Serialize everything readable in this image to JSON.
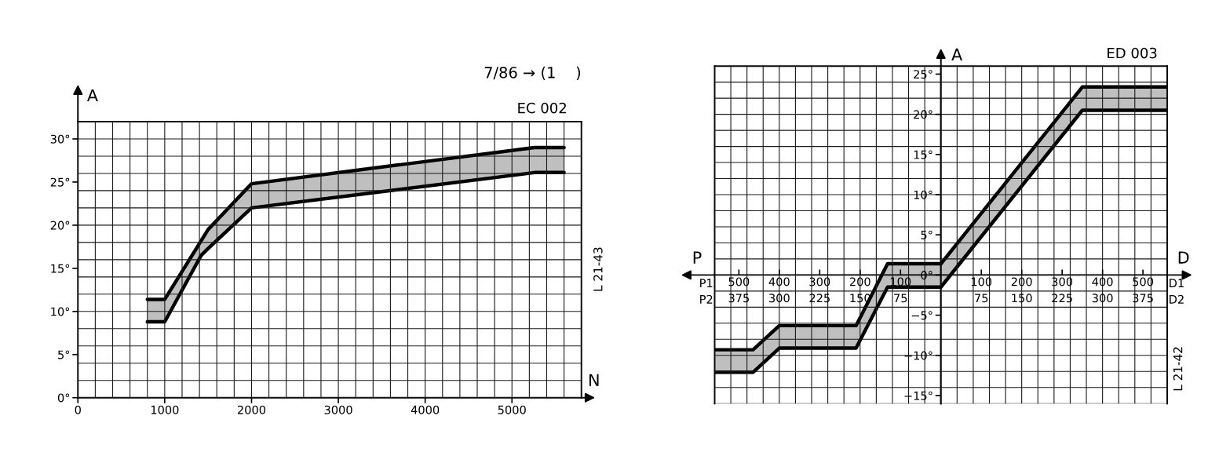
{
  "chart_data": [
    {
      "type": "line",
      "title": "7/86 → (1    )",
      "xlabel": "N",
      "ylabel": "A",
      "annotations": [
        "EC 002",
        "L 21-43"
      ],
      "xlim": [
        0,
        5800
      ],
      "ylim": [
        0,
        32
      ],
      "xticks": [
        0,
        {
          "value": 200,
          "label": null
        },
        {
          "value": 400,
          "label": null
        },
        {
          "value": 600,
          "label": null
        },
        {
          "value": 800,
          "label": null
        },
        1000,
        {
          "value": 1200,
          "label": null
        },
        {
          "value": 1400,
          "label": null
        },
        {
          "value": 1600,
          "label": null
        },
        {
          "value": 1800,
          "label": null
        },
        2000,
        {
          "value": 2200,
          "label": null
        },
        {
          "value": 2400,
          "label": null
        },
        {
          "value": 2600,
          "label": null
        },
        {
          "value": 2800,
          "label": null
        },
        3000,
        {
          "value": 3200,
          "label": null
        },
        {
          "value": 3400,
          "label": null
        },
        {
          "value": 3600,
          "label": null
        },
        {
          "value": 3800,
          "label": null
        },
        4000,
        {
          "value": 4200,
          "label": null
        },
        {
          "value": 4400,
          "label": null
        },
        {
          "value": 4600,
          "label": null
        },
        {
          "value": 4800,
          "label": null
        },
        5000,
        {
          "value": 5200,
          "label": null
        },
        {
          "value": 5400,
          "label": null
        },
        {
          "value": 5600,
          "label": null
        },
        {
          "value": 5800,
          "label": null
        }
      ],
      "yticks": [
        {
          "value": 0,
          "label": "0°"
        },
        {
          "value": 2,
          "label": null
        },
        {
          "value": 4,
          "label": null
        },
        {
          "value": 5,
          "label": "5°"
        },
        {
          "value": 6,
          "label": null
        },
        {
          "value": 8,
          "label": null
        },
        {
          "value": 10,
          "label": "10°"
        },
        {
          "value": 12,
          "label": null
        },
        {
          "value": 14,
          "label": null
        },
        {
          "value": 15,
          "label": "15°"
        },
        {
          "value": 16,
          "label": null
        },
        {
          "value": 18,
          "label": null
        },
        {
          "value": 20,
          "label": "20°"
        },
        {
          "value": 22,
          "label": null
        },
        {
          "value": 24,
          "label": null
        },
        {
          "value": 25,
          "label": "25°"
        },
        {
          "value": 26,
          "label": null
        },
        {
          "value": 28,
          "label": null
        },
        {
          "value": 30,
          "label": "30°"
        },
        {
          "value": 32,
          "label": null
        }
      ],
      "grid": true,
      "x": [
        800,
        1000,
        1420,
        1500,
        2000,
        5260,
        5600
      ],
      "series": [
        {
          "color": "#000000",
          "values": [
            11.4,
            11.4,
            18.2,
            19.5,
            24.8,
            29.0,
            29.0
          ],
          "lower": [
            8.8,
            8.8,
            16.5,
            17.3,
            22.0,
            26.1,
            26.1
          ],
          "upper": [
            11.4,
            11.4,
            18.2,
            19.5,
            24.8,
            29.0,
            29.0
          ]
        },
        {
          "color": "#000000",
          "values": [
            8.8,
            8.8,
            16.5,
            17.3,
            22.0,
            26.1,
            26.1
          ]
        }
      ]
    },
    {
      "type": "line",
      "xlabel": "P1",
      "x2label": "P2",
      "annotations": [
        "P"
      ],
      "tick_labels": "x",
      "xlim": [
        560,
        0
      ],
      "x2lim": [
        420,
        0
      ],
      "ylim": [
        -16,
        26
      ],
      "xticks": [
        {
          "value": 560,
          "label": null
        },
        {
          "value": 520,
          "label": null
        },
        500,
        {
          "value": 480,
          "label": null
        },
        {
          "value": 440,
          "label": null
        },
        400,
        {
          "value": 360,
          "label": null
        },
        {
          "value": 320,
          "label": null
        },
        300,
        {
          "value": 280,
          "label": null
        },
        {
          "value": 240,
          "label": null
        },
        200,
        {
          "value": 160,
          "label": null
        },
        {
          "value": 120,
          "label": null
        },
        100,
        {
          "value": 80,
          "label": null
        },
        {
          "value": 40,
          "label": null
        },
        {
          "value": 0,
          "label": null
        }
      ],
      "x2ticks": [
        375,
        300,
        225,
        150,
        75
      ],
      "yticks": [
        {
          "value": -16,
          "label": null
        },
        {
          "value": -14,
          "label": null
        },
        {
          "value": -12,
          "label": null
        },
        {
          "value": -10,
          "label": null
        },
        {
          "value": -8,
          "label": null
        },
        {
          "value": -6,
          "label": null
        },
        {
          "value": -4,
          "label": null
        },
        {
          "value": -2,
          "label": null
        },
        {
          "value": 0,
          "label": null
        },
        {
          "value": 2,
          "label": null
        },
        {
          "value": 4,
          "label": null
        },
        {
          "value": 6,
          "label": null
        },
        {
          "value": 8,
          "label": null
        },
        {
          "value": 10,
          "label": null
        },
        {
          "value": 12,
          "label": null
        },
        {
          "value": 14,
          "label": null
        },
        {
          "value": 16,
          "label": null
        },
        {
          "value": 18,
          "label": null
        },
        {
          "value": 20,
          "label": null
        },
        {
          "value": 22,
          "label": null
        },
        {
          "value": 24,
          "label": null
        },
        {
          "value": 26,
          "label": null
        }
      ],
      "grid": true,
      "x": [
        560,
        465,
        400,
        210,
        132,
        0
      ],
      "series": [
        {
          "color": "#000000",
          "values": [
            -9.3,
            -9.3,
            -6.3,
            -6.3,
            1.4,
            1.4
          ],
          "lower": [
            -12.1,
            -12.1,
            -9.1,
            -9.1,
            -1.5,
            -1.5
          ],
          "upper": [
            -9.3,
            -9.3,
            -6.3,
            -6.3,
            1.4,
            1.4
          ]
        },
        {
          "color": "#000000",
          "values": [
            -12.1,
            -12.1,
            -9.1,
            -9.1,
            -1.5,
            -1.5
          ]
        }
      ]
    },
    {
      "type": "line",
      "xlabel": "D1",
      "x2label": "D2",
      "ylabel": "A",
      "annotations": [
        "ED 003",
        "L 21-42",
        "D"
      ],
      "xlim": [
        0,
        560
      ],
      "x2lim": [
        0,
        420
      ],
      "ylim": [
        -16,
        26
      ],
      "xticks": [
        {
          "value": 0,
          "label": null
        },
        {
          "value": 40,
          "label": null
        },
        {
          "value": 80,
          "label": null
        },
        100,
        {
          "value": 120,
          "label": null
        },
        {
          "value": 160,
          "label": null
        },
        200,
        {
          "value": 240,
          "label": null
        },
        {
          "value": 280,
          "label": null
        },
        300,
        {
          "value": 320,
          "label": null
        },
        {
          "value": 360,
          "label": null
        },
        400,
        {
          "value": 440,
          "label": null
        },
        {
          "value": 480,
          "label": null
        },
        500,
        {
          "value": 520,
          "label": null
        },
        {
          "value": 560,
          "label": null
        }
      ],
      "x2ticks": [
        75,
        150,
        225,
        300,
        375
      ],
      "yticks": [
        {
          "value": -16,
          "label": null
        },
        {
          "value": -15,
          "label": "−15°"
        },
        {
          "value": -14,
          "label": null
        },
        {
          "value": -12,
          "label": null
        },
        {
          "value": -10,
          "label": "−10°"
        },
        {
          "value": -8,
          "label": null
        },
        {
          "value": -6,
          "label": null
        },
        {
          "value": -5,
          "label": "−5°"
        },
        {
          "value": -4,
          "label": null
        },
        {
          "value": -2,
          "label": null
        },
        {
          "value": 0,
          "label": "0°"
        },
        {
          "value": 2,
          "label": null
        },
        {
          "value": 4,
          "label": null
        },
        {
          "value": 5,
          "label": "5°"
        },
        {
          "value": 6,
          "label": null
        },
        {
          "value": 8,
          "label": null
        },
        {
          "value": 10,
          "label": "10°"
        },
        {
          "value": 12,
          "label": null
        },
        {
          "value": 14,
          "label": null
        },
        {
          "value": 15,
          "label": "15°"
        },
        {
          "value": 16,
          "label": null
        },
        {
          "value": 18,
          "label": null
        },
        {
          "value": 20,
          "label": "20°"
        },
        {
          "value": 22,
          "label": null
        },
        {
          "value": 24,
          "label": null
        },
        {
          "value": 25,
          "label": "25°"
        },
        {
          "value": 26,
          "label": null
        }
      ],
      "grid": true,
      "x": [
        0,
        350,
        560
      ],
      "series": [
        {
          "color": "#000000",
          "values": [
            1.4,
            23.4,
            23.4
          ],
          "lower": [
            -1.5,
            20.5,
            20.5
          ],
          "upper": [
            1.4,
            23.4,
            23.4
          ]
        },
        {
          "color": "#000000",
          "values": [
            -1.5,
            20.5,
            20.5
          ]
        }
      ]
    }
  ]
}
